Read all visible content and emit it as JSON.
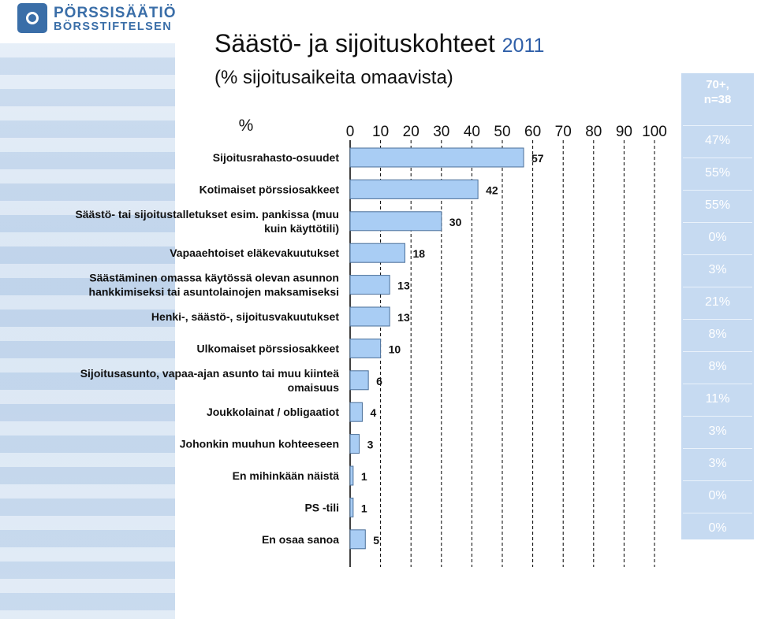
{
  "logo": {
    "line1": "PÖRSSISÄÄTIÖ",
    "line2": "BÖRSSTIFTELSEN"
  },
  "title": "Säästö- ja sijoituskohteet",
  "title_year": "2011",
  "subtitle": "(% sijoitusaikeita omaavista)",
  "colors": {
    "bar_fill": "#a9cdf4",
    "bar_stroke": "#4a6f99",
    "grid": "#000000",
    "title_year": "#2f5fa8",
    "side_panel": "#c6daf1",
    "side_text": "#ffffff"
  },
  "chart_data": {
    "type": "bar",
    "orientation": "horizontal",
    "unit_label": "%",
    "title": "",
    "xlabel": "",
    "ylabel": "",
    "xlim": [
      0,
      100
    ],
    "x_ticks": [
      "0",
      "10",
      "20",
      "30",
      "40",
      "50",
      "60",
      "70",
      "80",
      "90",
      "100"
    ],
    "grid": "vertical dashed",
    "categories": [
      [
        "Sijoitusrahasto-osuudet"
      ],
      [
        "Kotimaiset pörssiosakkeet"
      ],
      [
        "Säästö- tai sijoitustalletukset esim. pankissa (muu",
        "kuin käyttötili)"
      ],
      [
        "Vapaaehtoiset eläkevakuutukset"
      ],
      [
        "Säästäminen omassa käytössä olevan asunnon",
        "hankkimiseksi tai asuntolainojen maksamiseksi"
      ],
      [
        "Henki-, säästö-, sijoitusvakuutukset"
      ],
      [
        "Ulkomaiset pörssiosakkeet"
      ],
      [
        "Sijoitusasunto, vapaa-ajan asunto tai muu kiinteä",
        "omaisuus"
      ],
      [
        "Joukkolainat / obligaatiot"
      ],
      [
        "Johonkin muuhun kohteeseen"
      ],
      [
        "En mihinkään näistä"
      ],
      [
        "PS -tili"
      ],
      [
        "En osaa sanoa"
      ]
    ],
    "values": [
      57,
      42,
      30,
      18,
      13,
      13,
      10,
      6,
      4,
      3,
      1,
      1,
      5
    ]
  },
  "side_panel": {
    "header_line1": "70+,",
    "header_line2": "n=38",
    "values": [
      "47%",
      "55%",
      "55%",
      "0%",
      "3%",
      "21%",
      "8%",
      "8%",
      "11%",
      "3%",
      "3%",
      "0%",
      "0%"
    ]
  }
}
